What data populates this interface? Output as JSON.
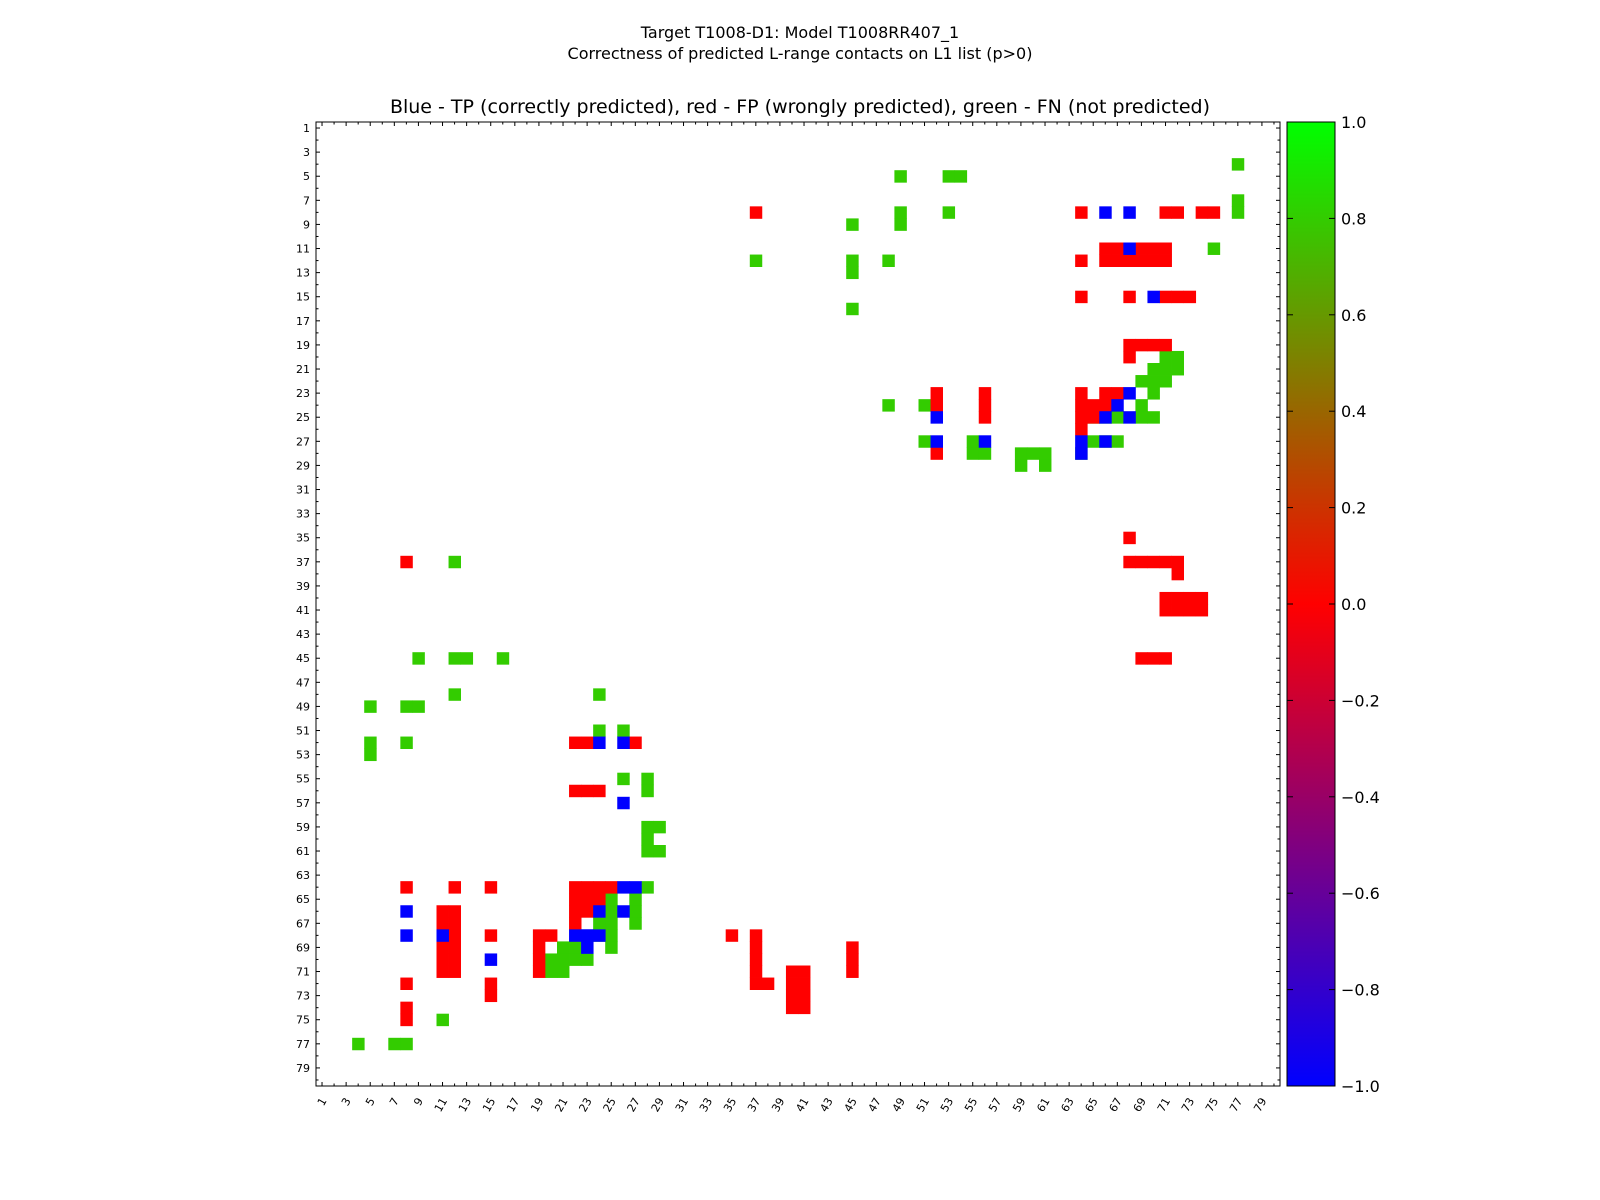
{
  "chart_data": {
    "type": "heatmap",
    "title_line1": "Target T1008-D1: Model T1008RR407_1",
    "title_line2": "Correctness of predicted L-range contacts on L1 list (p>0)",
    "axes_title": "Blue - TP (correctly predicted), red - FP (wrongly predicted), green - FN (not predicted)",
    "x_range": [
      1,
      80
    ],
    "y_range": [
      1,
      80
    ],
    "y_inverted": true,
    "tick_labels": [
      "1",
      "3",
      "5",
      "7",
      "9",
      "11",
      "13",
      "15",
      "17",
      "19",
      "21",
      "23",
      "25",
      "27",
      "29",
      "31",
      "33",
      "35",
      "37",
      "39",
      "41",
      "43",
      "45",
      "47",
      "49",
      "51",
      "53",
      "55",
      "57",
      "59",
      "61",
      "63",
      "65",
      "67",
      "69",
      "71",
      "73",
      "75",
      "77",
      "79"
    ],
    "colorbar": {
      "range": [
        -1.0,
        1.0
      ],
      "tick_labels": [
        "1.0",
        "0.8",
        "0.6",
        "0.4",
        "0.2",
        "0.0",
        "−0.2",
        "−0.4",
        "−0.6",
        "−0.8",
        "−1.0"
      ],
      "tick_values": [
        1.0,
        0.8,
        0.6,
        0.4,
        0.2,
        0.0,
        -0.2,
        -0.4,
        -0.6,
        -0.8,
        -1.0
      ]
    },
    "categories": {
      "TP": {
        "value": -1.0,
        "color": "#0000ff"
      },
      "FP": {
        "value": 0.0,
        "color": "#ff0000"
      },
      "FN": {
        "value": 0.85,
        "color": "#33cc00"
      }
    },
    "cells": {
      "TP": [
        [
          66,
          8
        ],
        [
          68,
          8
        ],
        [
          68,
          11
        ],
        [
          70,
          15
        ],
        [
          68,
          23
        ],
        [
          67,
          24
        ],
        [
          66,
          25
        ],
        [
          68,
          25
        ],
        [
          52,
          25
        ],
        [
          52,
          27
        ],
        [
          56,
          27
        ],
        [
          64,
          27
        ],
        [
          66,
          27
        ],
        [
          64,
          28
        ],
        [
          24,
          52
        ],
        [
          26,
          52
        ],
        [
          26,
          57
        ],
        [
          26,
          64
        ],
        [
          27,
          64
        ],
        [
          24,
          66
        ],
        [
          26,
          66
        ],
        [
          8,
          66
        ],
        [
          23,
          68
        ],
        [
          8,
          68
        ],
        [
          11,
          68
        ],
        [
          22,
          68
        ],
        [
          23,
          68
        ],
        [
          24,
          68
        ],
        [
          23,
          69
        ],
        [
          15,
          70
        ]
      ],
      "FP": [
        [
          37,
          8
        ],
        [
          64,
          8
        ],
        [
          71,
          8
        ],
        [
          72,
          8
        ],
        [
          74,
          8
        ],
        [
          75,
          8
        ],
        [
          66,
          11
        ],
        [
          67,
          11
        ],
        [
          69,
          11
        ],
        [
          70,
          11
        ],
        [
          71,
          11
        ],
        [
          66,
          12
        ],
        [
          67,
          12
        ],
        [
          68,
          12
        ],
        [
          69,
          12
        ],
        [
          70,
          12
        ],
        [
          71,
          12
        ],
        [
          64,
          12
        ],
        [
          64,
          15
        ],
        [
          68,
          15
        ],
        [
          71,
          15
        ],
        [
          72,
          15
        ],
        [
          73,
          15
        ],
        [
          68,
          19
        ],
        [
          69,
          19
        ],
        [
          70,
          19
        ],
        [
          71,
          19
        ],
        [
          68,
          20
        ],
        [
          52,
          23
        ],
        [
          56,
          23
        ],
        [
          64,
          23
        ],
        [
          66,
          23
        ],
        [
          67,
          23
        ],
        [
          52,
          24
        ],
        [
          56,
          24
        ],
        [
          64,
          24
        ],
        [
          65,
          24
        ],
        [
          66,
          24
        ],
        [
          56,
          25
        ],
        [
          64,
          25
        ],
        [
          65,
          25
        ],
        [
          64,
          26
        ],
        [
          52,
          28
        ],
        [
          68,
          35
        ],
        [
          68,
          37
        ],
        [
          69,
          37
        ],
        [
          70,
          37
        ],
        [
          71,
          37
        ],
        [
          72,
          37
        ],
        [
          72,
          38
        ],
        [
          71,
          40
        ],
        [
          72,
          40
        ],
        [
          73,
          40
        ],
        [
          74,
          40
        ],
        [
          71,
          41
        ],
        [
          72,
          41
        ],
        [
          73,
          41
        ],
        [
          74,
          41
        ],
        [
          69,
          45
        ],
        [
          70,
          45
        ],
        [
          71,
          45
        ],
        [
          8,
          37
        ],
        [
          22,
          52
        ],
        [
          23,
          52
        ],
        [
          27,
          52
        ],
        [
          22,
          56
        ],
        [
          23,
          56
        ],
        [
          24,
          56
        ],
        [
          8,
          64
        ],
        [
          12,
          64
        ],
        [
          15,
          64
        ],
        [
          22,
          64
        ],
        [
          23,
          64
        ],
        [
          24,
          64
        ],
        [
          25,
          64
        ],
        [
          23,
          65
        ],
        [
          24,
          65
        ],
        [
          22,
          65
        ],
        [
          11,
          66
        ],
        [
          12,
          66
        ],
        [
          22,
          66
        ],
        [
          23,
          66
        ],
        [
          11,
          67
        ],
        [
          12,
          67
        ],
        [
          22,
          67
        ],
        [
          11,
          68
        ],
        [
          12,
          68
        ],
        [
          15,
          68
        ],
        [
          19,
          68
        ],
        [
          20,
          68
        ],
        [
          35,
          68
        ],
        [
          37,
          68
        ],
        [
          11,
          69
        ],
        [
          12,
          69
        ],
        [
          19,
          69
        ],
        [
          37,
          69
        ],
        [
          45,
          69
        ],
        [
          11,
          70
        ],
        [
          12,
          70
        ],
        [
          19,
          70
        ],
        [
          37,
          70
        ],
        [
          45,
          70
        ],
        [
          11,
          71
        ],
        [
          12,
          71
        ],
        [
          19,
          71
        ],
        [
          37,
          71
        ],
        [
          40,
          71
        ],
        [
          41,
          71
        ],
        [
          45,
          71
        ],
        [
          8,
          72
        ],
        [
          15,
          72
        ],
        [
          37,
          72
        ],
        [
          38,
          72
        ],
        [
          40,
          72
        ],
        [
          41,
          72
        ],
        [
          15,
          73
        ],
        [
          40,
          73
        ],
        [
          41,
          73
        ],
        [
          8,
          74
        ],
        [
          40,
          74
        ],
        [
          41,
          74
        ],
        [
          8,
          75
        ]
      ],
      "FN": [
        [
          77,
          4
        ],
        [
          49,
          5
        ],
        [
          53,
          5
        ],
        [
          54,
          5
        ],
        [
          49,
          8
        ],
        [
          53,
          8
        ],
        [
          77,
          7
        ],
        [
          77,
          8
        ],
        [
          45,
          9
        ],
        [
          49,
          9
        ],
        [
          75,
          11
        ],
        [
          37,
          12
        ],
        [
          45,
          12
        ],
        [
          48,
          12
        ],
        [
          45,
          13
        ],
        [
          45,
          16
        ],
        [
          71,
          20
        ],
        [
          72,
          20
        ],
        [
          70,
          21
        ],
        [
          71,
          21
        ],
        [
          72,
          21
        ],
        [
          69,
          22
        ],
        [
          70,
          22
        ],
        [
          71,
          22
        ],
        [
          70,
          23
        ],
        [
          48,
          24
        ],
        [
          51,
          24
        ],
        [
          69,
          24
        ],
        [
          65,
          25
        ],
        [
          66,
          25
        ],
        [
          67,
          25
        ],
        [
          69,
          25
        ],
        [
          70,
          25
        ],
        [
          51,
          27
        ],
        [
          55,
          27
        ],
        [
          65,
          27
        ],
        [
          66,
          27
        ],
        [
          67,
          27
        ],
        [
          55,
          28
        ],
        [
          56,
          28
        ],
        [
          59,
          28
        ],
        [
          60,
          28
        ],
        [
          61,
          28
        ],
        [
          64,
          28
        ],
        [
          59,
          29
        ],
        [
          61,
          29
        ],
        [
          12,
          37
        ],
        [
          9,
          45
        ],
        [
          12,
          45
        ],
        [
          13,
          45
        ],
        [
          16,
          45
        ],
        [
          12,
          48
        ],
        [
          24,
          48
        ],
        [
          5,
          49
        ],
        [
          8,
          49
        ],
        [
          9,
          49
        ],
        [
          24,
          51
        ],
        [
          26,
          51
        ],
        [
          5,
          52
        ],
        [
          8,
          52
        ],
        [
          5,
          53
        ],
        [
          26,
          55
        ],
        [
          28,
          55
        ],
        [
          28,
          56
        ],
        [
          28,
          59
        ],
        [
          29,
          59
        ],
        [
          28,
          60
        ],
        [
          28,
          61
        ],
        [
          29,
          61
        ],
        [
          28,
          64
        ],
        [
          25,
          65
        ],
        [
          27,
          65
        ],
        [
          25,
          66
        ],
        [
          27,
          66
        ],
        [
          25,
          67
        ],
        [
          24,
          67
        ],
        [
          27,
          67
        ],
        [
          24,
          68
        ],
        [
          25,
          68
        ],
        [
          21,
          69
        ],
        [
          22,
          69
        ],
        [
          25,
          69
        ],
        [
          20,
          70
        ],
        [
          21,
          70
        ],
        [
          22,
          70
        ],
        [
          23,
          70
        ],
        [
          20,
          71
        ],
        [
          21,
          71
        ],
        [
          11,
          75
        ],
        [
          4,
          77
        ],
        [
          7,
          77
        ],
        [
          8,
          77
        ]
      ]
    }
  }
}
